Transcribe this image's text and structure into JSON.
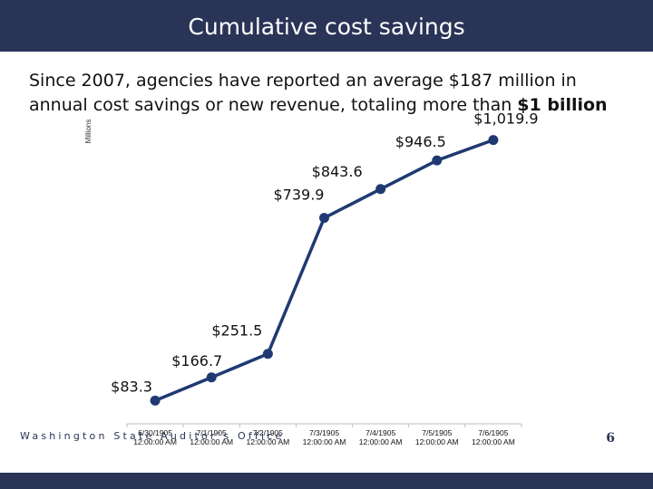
{
  "slide": {
    "title": "Cumulative cost savings",
    "subtitle_main": "Since 2007, agencies have reported an average $187 million in annual cost savings or new revenue, totaling more than ",
    "subtitle_bold": "$1 billion",
    "footer": "Washington State Auditor’s Office",
    "page_number": "6"
  },
  "colors": {
    "navy": "#2a3457",
    "line": "#1f3a72",
    "marker": "#1f3a72"
  },
  "chart_data": {
    "type": "line",
    "title": "",
    "xlabel": "",
    "ylabel": "Millions",
    "categories": [
      "6/30/1905 12:00:00 AM",
      "7/1/1905 12:00:00 AM",
      "7/2/1905 12:00:00 AM",
      "7/3/1905 12:00:00 AM",
      "7/4/1905 12:00:00 AM",
      "7/5/1905 12:00:00 AM",
      "7/6/1905 12:00:00 AM"
    ],
    "category_lines": [
      [
        "6/30/1905",
        "12:00:00 AM"
      ],
      [
        "7/1/1905",
        "12:00:00 AM"
      ],
      [
        "7/2/1905",
        "12:00:00 AM"
      ],
      [
        "7/3/1905",
        "12:00:00 AM"
      ],
      [
        "7/4/1905",
        "12:00:00 AM"
      ],
      [
        "7/5/1905",
        "12:00:00 AM"
      ],
      [
        "7/6/1905",
        "12:00:00 AM"
      ]
    ],
    "values": [
      83.3,
      166.7,
      251.5,
      739.9,
      843.6,
      946.5,
      1019.9
    ],
    "data_labels": [
      "$83.3",
      "$166.7",
      "$251.5",
      "$739.9",
      "$843.6",
      "$946.5",
      "$1,019.9"
    ],
    "ylim": [
      0,
      1100
    ],
    "grid": false,
    "legend": "none"
  }
}
